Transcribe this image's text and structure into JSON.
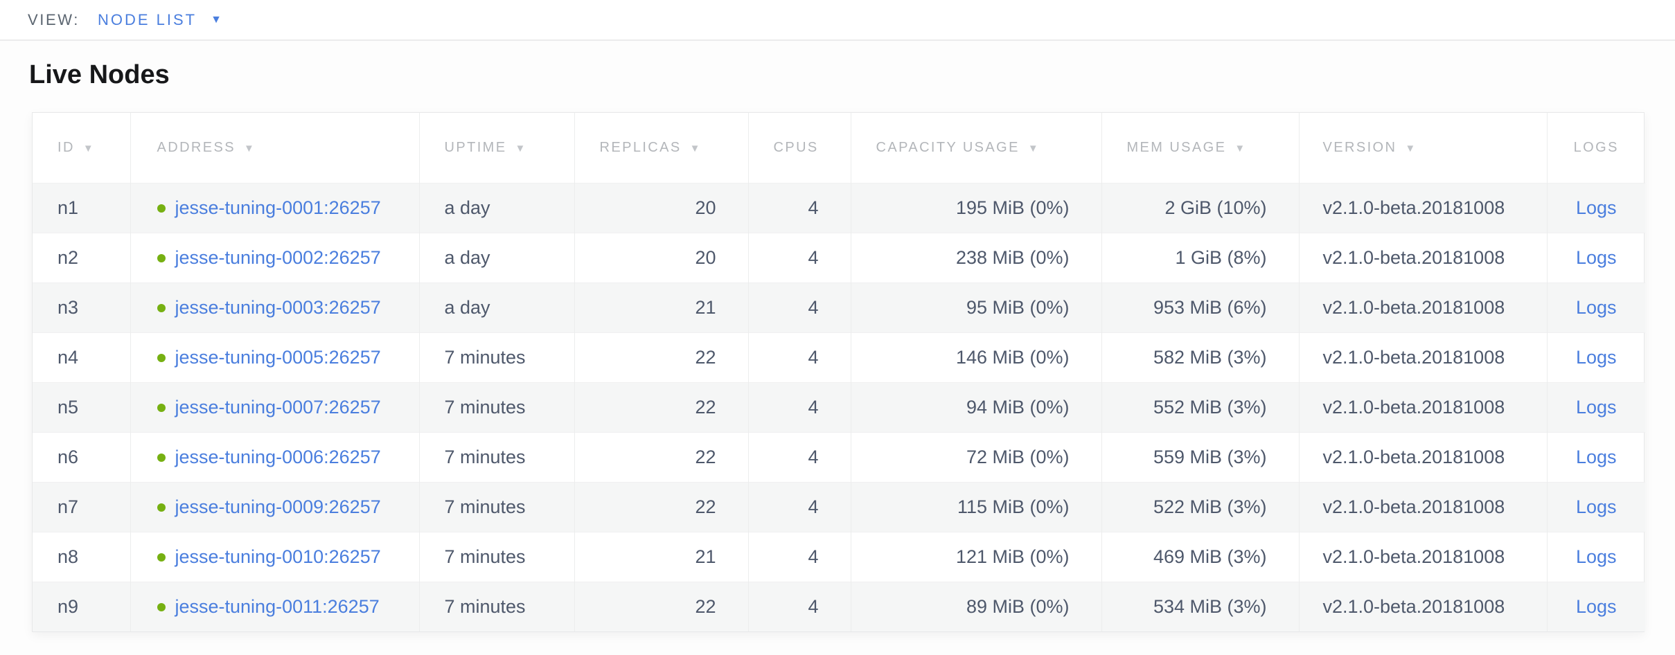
{
  "view_bar": {
    "label": "VIEW:",
    "selected": "NODE LIST"
  },
  "page": {
    "title": "Live Nodes"
  },
  "icons": {
    "caret_down": "▼",
    "sort_desc": "▼",
    "node_status_dot": "●"
  },
  "colors": {
    "accent_blue": "#4a7ede",
    "healthy_dot_green": "#76b012",
    "header_text_gray": "#b3b6ba",
    "cell_text_slate": "#4e586b",
    "row_stripe": "#f5f6f6"
  },
  "table": {
    "columns": [
      {
        "key": "id",
        "label": "ID",
        "sortable": true
      },
      {
        "key": "address",
        "label": "ADDRESS",
        "sortable": true
      },
      {
        "key": "uptime",
        "label": "UPTIME",
        "sortable": true
      },
      {
        "key": "replicas",
        "label": "REPLICAS",
        "sortable": true
      },
      {
        "key": "cpus",
        "label": "CPUS",
        "sortable": false
      },
      {
        "key": "capacity",
        "label": "CAPACITY USAGE",
        "sortable": true
      },
      {
        "key": "mem",
        "label": "MEM USAGE",
        "sortable": true
      },
      {
        "key": "version",
        "label": "VERSION",
        "sortable": true
      },
      {
        "key": "logs",
        "label": "LOGS",
        "sortable": false
      }
    ],
    "rows": [
      {
        "id": "n1",
        "address": "jesse-tuning-0001:26257",
        "uptime": "a day",
        "replicas": "20",
        "cpus": "4",
        "capacity": "195 MiB (0%)",
        "mem": "2 GiB (10%)",
        "version": "v2.1.0-beta.20181008",
        "logs": "Logs"
      },
      {
        "id": "n2",
        "address": "jesse-tuning-0002:26257",
        "uptime": "a day",
        "replicas": "20",
        "cpus": "4",
        "capacity": "238 MiB (0%)",
        "mem": "1 GiB (8%)",
        "version": "v2.1.0-beta.20181008",
        "logs": "Logs"
      },
      {
        "id": "n3",
        "address": "jesse-tuning-0003:26257",
        "uptime": "a day",
        "replicas": "21",
        "cpus": "4",
        "capacity": "95 MiB (0%)",
        "mem": "953 MiB (6%)",
        "version": "v2.1.0-beta.20181008",
        "logs": "Logs"
      },
      {
        "id": "n4",
        "address": "jesse-tuning-0005:26257",
        "uptime": "7 minutes",
        "replicas": "22",
        "cpus": "4",
        "capacity": "146 MiB (0%)",
        "mem": "582 MiB (3%)",
        "version": "v2.1.0-beta.20181008",
        "logs": "Logs"
      },
      {
        "id": "n5",
        "address": "jesse-tuning-0007:26257",
        "uptime": "7 minutes",
        "replicas": "22",
        "cpus": "4",
        "capacity": "94 MiB (0%)",
        "mem": "552 MiB (3%)",
        "version": "v2.1.0-beta.20181008",
        "logs": "Logs"
      },
      {
        "id": "n6",
        "address": "jesse-tuning-0006:26257",
        "uptime": "7 minutes",
        "replicas": "22",
        "cpus": "4",
        "capacity": "72 MiB (0%)",
        "mem": "559 MiB (3%)",
        "version": "v2.1.0-beta.20181008",
        "logs": "Logs"
      },
      {
        "id": "n7",
        "address": "jesse-tuning-0009:26257",
        "uptime": "7 minutes",
        "replicas": "22",
        "cpus": "4",
        "capacity": "115 MiB (0%)",
        "mem": "522 MiB (3%)",
        "version": "v2.1.0-beta.20181008",
        "logs": "Logs"
      },
      {
        "id": "n8",
        "address": "jesse-tuning-0010:26257",
        "uptime": "7 minutes",
        "replicas": "21",
        "cpus": "4",
        "capacity": "121 MiB (0%)",
        "mem": "469 MiB (3%)",
        "version": "v2.1.0-beta.20181008",
        "logs": "Logs"
      },
      {
        "id": "n9",
        "address": "jesse-tuning-0011:26257",
        "uptime": "7 minutes",
        "replicas": "22",
        "cpus": "4",
        "capacity": "89 MiB (0%)",
        "mem": "534 MiB (3%)",
        "version": "v2.1.0-beta.20181008",
        "logs": "Logs"
      }
    ]
  }
}
